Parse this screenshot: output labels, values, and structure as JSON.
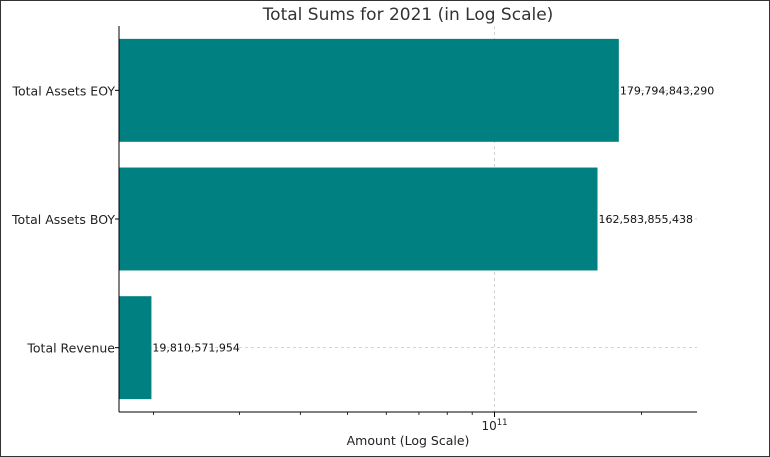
{
  "chart_data": {
    "type": "bar",
    "orientation": "horizontal",
    "title": "Total Sums for 2021 (in Log Scale)",
    "xlabel": "Amount (Log Scale)",
    "ylabel": "",
    "x_scale": "log",
    "xlim": [
      17000000000,
      260000000000
    ],
    "grid": true,
    "categories": [
      "Total Assets EOY",
      "Total Assets BOY",
      "Total Revenue"
    ],
    "values": [
      179794843290,
      162583855438,
      19810571954
    ],
    "value_labels": [
      "179,794,843,290",
      "162,583,855,438",
      "19,810,571,954"
    ],
    "x_ticks": [
      {
        "value": 100000000000,
        "base": "10",
        "exponent": "11"
      }
    ],
    "bar_color": "#008080"
  }
}
